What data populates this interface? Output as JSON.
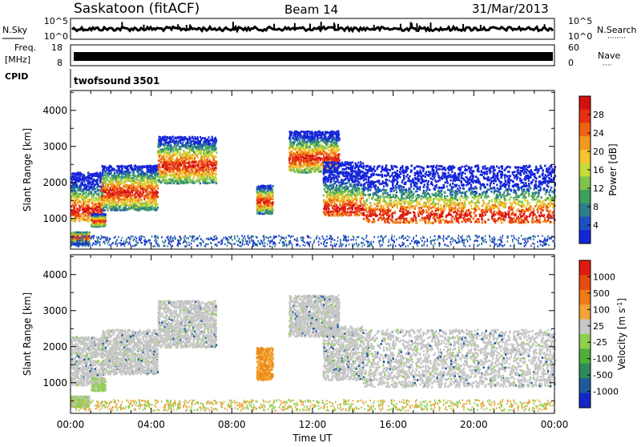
{
  "header": {
    "station": "Saskatoon (fitACF)",
    "beam": "Beam 14",
    "date": "31/Mar/2013"
  },
  "noise_panel": {
    "left_label": "N.Sky",
    "right_label": "N.Search",
    "right_label_decor": "········",
    "ticks_left": [
      "10^5",
      "10^0"
    ],
    "ticks_right": [
      "10^5",
      "10^0"
    ]
  },
  "freq_panel": {
    "left_label_1": "Freq.",
    "left_label_2": "[MHz]",
    "left_label_3": "CPID",
    "ticks_left": [
      "18",
      "8"
    ],
    "ticks_right": [
      "60",
      "0"
    ],
    "right_label": "Nave",
    "right_label_decor": "····"
  },
  "cpid_panel": {
    "program": "twofsound",
    "cpid": "3501"
  },
  "x_axis": {
    "label": "Time UT",
    "ticks": [
      "00:00",
      "04:00",
      "08:00",
      "12:00",
      "16:00",
      "20:00",
      "00:00"
    ]
  },
  "chart_data": [
    {
      "type": "heatmap",
      "name": "power",
      "title": "",
      "xlabel": "Time UT",
      "ylabel": "Slant Range [km]",
      "x_range_hours": [
        0,
        24
      ],
      "ylim": [
        150,
        4550
      ],
      "y_ticks": [
        1000,
        2000,
        3000,
        4000
      ],
      "colorbar": {
        "label": "Power [dB]",
        "ticks": [
          "4",
          "8",
          "12",
          "16",
          "20",
          "24",
          "28"
        ],
        "range": [
          0,
          32
        ],
        "colors": [
          "#1525d8",
          "#1f4fc0",
          "#2d7f8a",
          "#3c9f5e",
          "#7fc34e",
          "#c7dc3c",
          "#f6c22e",
          "#f29a1e",
          "#ee6314",
          "#e83010",
          "#d51010"
        ]
      },
      "regions": [
        {
          "t0": 0.0,
          "t1": 1.6,
          "r0": 950,
          "r1": 2300,
          "core": 1250
        },
        {
          "t0": 1.5,
          "t1": 4.3,
          "r0": 1250,
          "r1": 2500,
          "core": 1750
        },
        {
          "t0": 4.3,
          "t1": 7.2,
          "r0": 2000,
          "r1": 3300,
          "core": 2500
        },
        {
          "t0": 9.2,
          "t1": 10.0,
          "r0": 1150,
          "r1": 1950,
          "core": 1500
        },
        {
          "t0": 10.8,
          "t1": 13.3,
          "r0": 2300,
          "r1": 3450,
          "core": 2700
        },
        {
          "t0": 12.5,
          "t1": 14.5,
          "r0": 1100,
          "r1": 2600,
          "core": 1300
        },
        {
          "t0": 14.5,
          "t1": 24.0,
          "r0": 900,
          "r1": 2500,
          "core": 1100
        },
        {
          "t0": 1.0,
          "t1": 1.7,
          "r0": 800,
          "r1": 1150,
          "core": 950
        },
        {
          "t0": 0.0,
          "t1": 0.9,
          "r0": 300,
          "r1": 650,
          "core": 500
        }
      ]
    },
    {
      "type": "heatmap",
      "name": "velocity",
      "title": "",
      "xlabel": "Time UT",
      "ylabel": "Slant Range [km]",
      "x_range_hours": [
        0,
        24
      ],
      "ylim": [
        150,
        4550
      ],
      "y_ticks": [
        1000,
        2000,
        3000,
        4000
      ],
      "colorbar": {
        "label": "Velocity [m s^-1]",
        "ticks": [
          "1000",
          "500",
          "100",
          "25",
          "-25",
          "-100",
          "-500",
          "-1000"
        ],
        "colors": [
          "#1426c8",
          "#1f5a9c",
          "#2e8a5a",
          "#4fae3c",
          "#8fd04e",
          "#c8c8c8",
          "#f2a33a",
          "#ee7a18",
          "#e84b12",
          "#e01c10"
        ]
      },
      "regions": [
        {
          "t0": 0.0,
          "t1": 1.6,
          "r0": 950,
          "r1": 2300,
          "tone": "grey"
        },
        {
          "t0": 1.5,
          "t1": 4.3,
          "r0": 1250,
          "r1": 2500,
          "tone": "grey"
        },
        {
          "t0": 4.3,
          "t1": 7.2,
          "r0": 2000,
          "r1": 3300,
          "tone": "grey"
        },
        {
          "t0": 9.2,
          "t1": 10.0,
          "r0": 1100,
          "r1": 2000,
          "tone": "orange"
        },
        {
          "t0": 10.8,
          "t1": 13.3,
          "r0": 2300,
          "r1": 3450,
          "tone": "grey"
        },
        {
          "t0": 12.5,
          "t1": 14.5,
          "r0": 1100,
          "r1": 2600,
          "tone": "grey"
        },
        {
          "t0": 14.5,
          "t1": 24.0,
          "r0": 900,
          "r1": 2500,
          "tone": "grey"
        },
        {
          "t0": 1.0,
          "t1": 1.7,
          "r0": 800,
          "r1": 1150,
          "tone": "green"
        },
        {
          "t0": 0.0,
          "t1": 0.9,
          "r0": 350,
          "r1": 650,
          "tone": "green"
        }
      ]
    }
  ]
}
